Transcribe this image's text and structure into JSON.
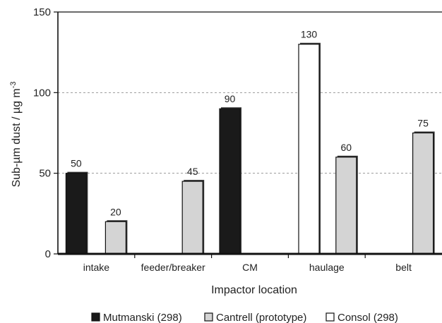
{
  "chart_data": {
    "type": "bar",
    "categories": [
      "intake",
      "feeder/breaker",
      "CM",
      "haulage",
      "belt"
    ],
    "series": [
      {
        "name": "Mutmanski (298)",
        "color": "#1a1a1a",
        "values": [
          50,
          null,
          90,
          null,
          null
        ]
      },
      {
        "name": "Cantrell (prototype)",
        "color": "#d4d4d4",
        "values": [
          20,
          45,
          null,
          60,
          75
        ]
      },
      {
        "name": "Consol (298)",
        "color": "#ffffff",
        "values": [
          null,
          null,
          130,
          null,
          null
        ]
      }
    ],
    "data_labels": [
      {
        "category": "intake",
        "series": "Mutmanski (298)",
        "text": "50"
      },
      {
        "category": "intake",
        "series": "Cantrell (prototype)",
        "text": "20"
      },
      {
        "category": "feeder/breaker",
        "series": "Cantrell (prototype)",
        "text": "45"
      },
      {
        "category": "CM",
        "series": "Mutmanski (298)",
        "text": "90"
      },
      {
        "category": "CM",
        "series": "Consol (298)",
        "text": "130"
      },
      {
        "category": "haulage",
        "series": "Cantrell (prototype)",
        "text": "60"
      },
      {
        "category": "belt",
        "series": "Cantrell (prototype)",
        "text": "75"
      }
    ],
    "yticks": [
      "0",
      "50",
      "100",
      "150"
    ],
    "ylim": [
      0,
      150
    ],
    "xlabel": "Impactor location",
    "ylabel_main": "Sub-µm dust / µg m",
    "ylabel_sup": "-3",
    "grid": "horizontal dashed at 50, 100",
    "legend_position": "bottom"
  }
}
